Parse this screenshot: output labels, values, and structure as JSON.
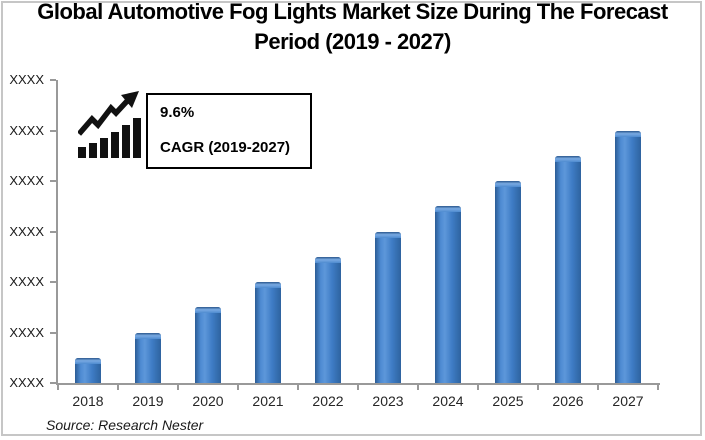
{
  "title": {
    "line1": "Global Automotive Fog Lights Market Size During The Forecast",
    "line2": "Period (2019 - 2027)"
  },
  "cagr": {
    "rate": "9.6%",
    "label": "CAGR (2019-2027)"
  },
  "source": "Source: Research Nester",
  "icons": {
    "growth_trend": "growth-trend-icon"
  },
  "colors": {
    "bar_main": "#3e7cc5",
    "bar_edge": "#2b5c95",
    "bar_edge2": "#2e639f",
    "bar_light": "#4e8bd2",
    "bar_lighter": "#5d97da",
    "bar_top_highlight": "#79aae2",
    "axis": "#999999",
    "frame_border": "#c6c6c6",
    "text": "#000000"
  },
  "chart_data": {
    "type": "bar",
    "title": "Global Automotive Fog Lights Market Size During The Forecast Period (2019 - 2027)",
    "categories": [
      "2018",
      "2019",
      "2020",
      "2021",
      "2022",
      "2023",
      "2024",
      "2025",
      "2026",
      "2027"
    ],
    "values": [
      0.5,
      1.0,
      1.5,
      2.0,
      2.5,
      3.0,
      3.5,
      4.0,
      4.5,
      5.0
    ],
    "xlabel": "",
    "ylabel": "",
    "ylim": [
      0,
      6
    ],
    "yticks": [
      "XXXX",
      "XXXX",
      "XXXX",
      "XXXX",
      "XXXX",
      "XXXX",
      "XXXX"
    ],
    "ytick_values_masked": true,
    "grid": false,
    "legend": false,
    "annotation": "9.6% CAGR (2019-2027)"
  }
}
